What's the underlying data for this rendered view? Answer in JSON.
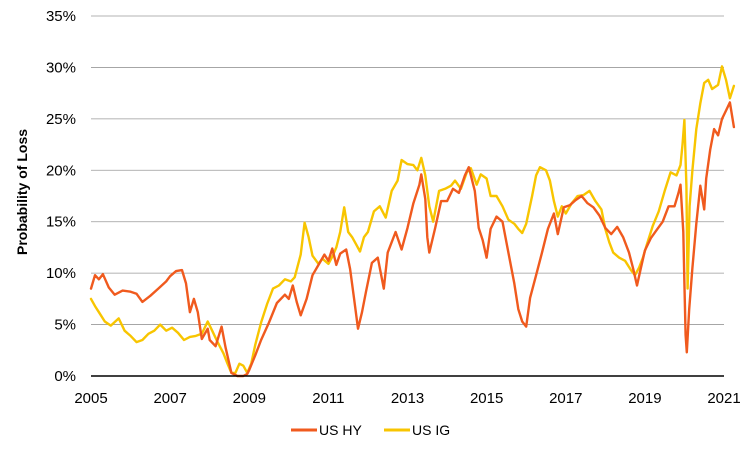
{
  "chart_data": {
    "type": "line",
    "title": "",
    "xlabel": "",
    "ylabel": "Probability of Loss",
    "xlim": [
      2005,
      2021
    ],
    "ylim": [
      0,
      35
    ],
    "x_ticks": [
      "2005",
      "2007",
      "2009",
      "2011",
      "2013",
      "2015",
      "2017",
      "2019",
      "2021"
    ],
    "y_ticks": [
      "0%",
      "5%",
      "10%",
      "15%",
      "20%",
      "25%",
      "30%",
      "35%"
    ],
    "grid": "horizontal",
    "legend_position": "bottom-center",
    "series": [
      {
        "name": "US HY",
        "color": "#F05A1E",
        "points": [
          [
            2005.0,
            8.5
          ],
          [
            2005.1,
            9.8
          ],
          [
            2005.2,
            9.4
          ],
          [
            2005.3,
            9.9
          ],
          [
            2005.45,
            8.6
          ],
          [
            2005.6,
            7.9
          ],
          [
            2005.8,
            8.3
          ],
          [
            2006.0,
            8.2
          ],
          [
            2006.15,
            8.0
          ],
          [
            2006.3,
            7.2
          ],
          [
            2006.5,
            7.8
          ],
          [
            2006.7,
            8.5
          ],
          [
            2006.9,
            9.2
          ],
          [
            2007.0,
            9.7
          ],
          [
            2007.15,
            10.2
          ],
          [
            2007.3,
            10.3
          ],
          [
            2007.4,
            9.0
          ],
          [
            2007.5,
            6.2
          ],
          [
            2007.6,
            7.5
          ],
          [
            2007.7,
            6.2
          ],
          [
            2007.8,
            3.6
          ],
          [
            2007.95,
            4.6
          ],
          [
            2008.0,
            3.5
          ],
          [
            2008.15,
            2.9
          ],
          [
            2008.3,
            4.8
          ],
          [
            2008.4,
            2.8
          ],
          [
            2008.55,
            0.3
          ],
          [
            2008.7,
            0.0
          ],
          [
            2008.85,
            0.0
          ],
          [
            2008.95,
            0.2
          ],
          [
            2009.0,
            0.6
          ],
          [
            2009.15,
            2.0
          ],
          [
            2009.3,
            3.5
          ],
          [
            2009.5,
            5.2
          ],
          [
            2009.7,
            7.1
          ],
          [
            2009.9,
            7.9
          ],
          [
            2010.0,
            7.5
          ],
          [
            2010.1,
            8.8
          ],
          [
            2010.2,
            7.2
          ],
          [
            2010.3,
            5.9
          ],
          [
            2010.45,
            7.5
          ],
          [
            2010.6,
            9.8
          ],
          [
            2010.75,
            10.8
          ],
          [
            2010.9,
            11.8
          ],
          [
            2011.0,
            11.2
          ],
          [
            2011.1,
            12.4
          ],
          [
            2011.2,
            10.8
          ],
          [
            2011.3,
            11.9
          ],
          [
            2011.45,
            12.3
          ],
          [
            2011.55,
            10.4
          ],
          [
            2011.65,
            7.5
          ],
          [
            2011.75,
            4.6
          ],
          [
            2011.85,
            6.2
          ],
          [
            2011.95,
            8.2
          ],
          [
            2012.1,
            11.0
          ],
          [
            2012.25,
            11.5
          ],
          [
            2012.4,
            8.5
          ],
          [
            2012.5,
            12.0
          ],
          [
            2012.7,
            14.0
          ],
          [
            2012.85,
            12.3
          ],
          [
            2013.0,
            14.4
          ],
          [
            2013.15,
            16.8
          ],
          [
            2013.3,
            18.6
          ],
          [
            2013.35,
            19.6
          ],
          [
            2013.45,
            17.2
          ],
          [
            2013.5,
            13.5
          ],
          [
            2013.55,
            12.0
          ],
          [
            2013.7,
            14.4
          ],
          [
            2013.85,
            17.0
          ],
          [
            2014.0,
            17.0
          ],
          [
            2014.15,
            18.2
          ],
          [
            2014.3,
            17.8
          ],
          [
            2014.45,
            19.5
          ],
          [
            2014.55,
            20.3
          ],
          [
            2014.7,
            18.0
          ],
          [
            2014.8,
            14.4
          ],
          [
            2014.9,
            13.2
          ],
          [
            2015.0,
            11.5
          ],
          [
            2015.1,
            14.3
          ],
          [
            2015.25,
            15.5
          ],
          [
            2015.4,
            15.0
          ],
          [
            2015.55,
            12.0
          ],
          [
            2015.7,
            9.0
          ],
          [
            2015.8,
            6.5
          ],
          [
            2015.9,
            5.3
          ],
          [
            2016.0,
            4.8
          ],
          [
            2016.1,
            7.6
          ],
          [
            2016.25,
            9.8
          ],
          [
            2016.4,
            12.0
          ],
          [
            2016.55,
            14.3
          ],
          [
            2016.7,
            15.8
          ],
          [
            2016.8,
            13.8
          ],
          [
            2016.95,
            16.4
          ],
          [
            2017.1,
            16.6
          ],
          [
            2017.25,
            17.1
          ],
          [
            2017.4,
            17.5
          ],
          [
            2017.55,
            16.8
          ],
          [
            2017.7,
            16.4
          ],
          [
            2017.85,
            15.6
          ],
          [
            2018.0,
            14.4
          ],
          [
            2018.15,
            13.8
          ],
          [
            2018.3,
            14.5
          ],
          [
            2018.45,
            13.5
          ],
          [
            2018.6,
            12.0
          ],
          [
            2018.7,
            10.5
          ],
          [
            2018.8,
            8.8
          ],
          [
            2018.9,
            10.5
          ],
          [
            2019.0,
            12.2
          ],
          [
            2019.15,
            13.4
          ],
          [
            2019.3,
            14.2
          ],
          [
            2019.45,
            15.0
          ],
          [
            2019.6,
            16.5
          ],
          [
            2019.75,
            16.5
          ],
          [
            2019.85,
            17.8
          ],
          [
            2019.9,
            18.6
          ],
          [
            2019.97,
            14.0
          ],
          [
            2020.0,
            9.0
          ],
          [
            2020.03,
            4.0
          ],
          [
            2020.06,
            2.3
          ],
          [
            2020.12,
            6.5
          ],
          [
            2020.2,
            10.5
          ],
          [
            2020.3,
            14.8
          ],
          [
            2020.4,
            18.5
          ],
          [
            2020.5,
            16.2
          ],
          [
            2020.55,
            19.2
          ],
          [
            2020.65,
            22.0
          ],
          [
            2020.75,
            24.0
          ],
          [
            2020.85,
            23.4
          ],
          [
            2020.95,
            25.0
          ],
          [
            2021.05,
            25.8
          ],
          [
            2021.15,
            26.6
          ],
          [
            2021.25,
            24.2
          ]
        ]
      },
      {
        "name": "US IG",
        "color": "#F8C500",
        "points": [
          [
            2005.0,
            7.5
          ],
          [
            2005.1,
            6.8
          ],
          [
            2005.2,
            6.2
          ],
          [
            2005.35,
            5.3
          ],
          [
            2005.5,
            4.9
          ],
          [
            2005.7,
            5.6
          ],
          [
            2005.85,
            4.4
          ],
          [
            2006.0,
            3.9
          ],
          [
            2006.15,
            3.3
          ],
          [
            2006.3,
            3.5
          ],
          [
            2006.45,
            4.1
          ],
          [
            2006.6,
            4.4
          ],
          [
            2006.75,
            5.0
          ],
          [
            2006.9,
            4.4
          ],
          [
            2007.05,
            4.7
          ],
          [
            2007.2,
            4.2
          ],
          [
            2007.35,
            3.5
          ],
          [
            2007.5,
            3.8
          ],
          [
            2007.65,
            3.9
          ],
          [
            2007.8,
            4.1
          ],
          [
            2007.95,
            5.3
          ],
          [
            2008.05,
            4.5
          ],
          [
            2008.2,
            3.3
          ],
          [
            2008.35,
            2.2
          ],
          [
            2008.45,
            1.2
          ],
          [
            2008.55,
            0.3
          ],
          [
            2008.65,
            0.3
          ],
          [
            2008.75,
            1.2
          ],
          [
            2008.85,
            1.0
          ],
          [
            2008.95,
            0.3
          ],
          [
            2009.05,
            1.2
          ],
          [
            2009.15,
            3.0
          ],
          [
            2009.3,
            5.2
          ],
          [
            2009.45,
            7.0
          ],
          [
            2009.6,
            8.5
          ],
          [
            2009.75,
            8.8
          ],
          [
            2009.9,
            9.4
          ],
          [
            2010.05,
            9.2
          ],
          [
            2010.15,
            9.6
          ],
          [
            2010.3,
            11.8
          ],
          [
            2010.4,
            14.9
          ],
          [
            2010.5,
            13.5
          ],
          [
            2010.6,
            11.7
          ],
          [
            2010.75,
            10.9
          ],
          [
            2010.85,
            11.4
          ],
          [
            2011.0,
            10.9
          ],
          [
            2011.1,
            11.6
          ],
          [
            2011.2,
            12.5
          ],
          [
            2011.3,
            14.0
          ],
          [
            2011.4,
            16.4
          ],
          [
            2011.5,
            14.0
          ],
          [
            2011.6,
            13.5
          ],
          [
            2011.7,
            12.8
          ],
          [
            2011.8,
            12.1
          ],
          [
            2011.9,
            13.5
          ],
          [
            2012.0,
            14.0
          ],
          [
            2012.15,
            16.0
          ],
          [
            2012.3,
            16.5
          ],
          [
            2012.45,
            15.4
          ],
          [
            2012.6,
            18.0
          ],
          [
            2012.75,
            19.0
          ],
          [
            2012.85,
            21.0
          ],
          [
            2013.0,
            20.6
          ],
          [
            2013.15,
            20.5
          ],
          [
            2013.25,
            20.0
          ],
          [
            2013.35,
            21.2
          ],
          [
            2013.45,
            19.5
          ],
          [
            2013.55,
            16.5
          ],
          [
            2013.65,
            15.0
          ],
          [
            2013.8,
            18.0
          ],
          [
            2013.95,
            18.2
          ],
          [
            2014.1,
            18.5
          ],
          [
            2014.2,
            19.0
          ],
          [
            2014.35,
            18.2
          ],
          [
            2014.5,
            19.8
          ],
          [
            2014.6,
            20.2
          ],
          [
            2014.75,
            18.6
          ],
          [
            2014.85,
            19.6
          ],
          [
            2015.0,
            19.2
          ],
          [
            2015.1,
            17.5
          ],
          [
            2015.25,
            17.5
          ],
          [
            2015.4,
            16.5
          ],
          [
            2015.55,
            15.2
          ],
          [
            2015.7,
            14.8
          ],
          [
            2015.8,
            14.3
          ],
          [
            2015.9,
            13.9
          ],
          [
            2016.0,
            14.8
          ],
          [
            2016.15,
            17.5
          ],
          [
            2016.25,
            19.5
          ],
          [
            2016.35,
            20.3
          ],
          [
            2016.5,
            20.0
          ],
          [
            2016.6,
            19.0
          ],
          [
            2016.7,
            17.0
          ],
          [
            2016.8,
            15.5
          ],
          [
            2016.9,
            16.5
          ],
          [
            2017.0,
            15.8
          ],
          [
            2017.15,
            16.8
          ],
          [
            2017.3,
            17.5
          ],
          [
            2017.45,
            17.6
          ],
          [
            2017.6,
            18.0
          ],
          [
            2017.75,
            17.0
          ],
          [
            2017.9,
            16.2
          ],
          [
            2018.0,
            14.3
          ],
          [
            2018.1,
            13.0
          ],
          [
            2018.2,
            12.0
          ],
          [
            2018.35,
            11.5
          ],
          [
            2018.5,
            11.2
          ],
          [
            2018.65,
            10.3
          ],
          [
            2018.75,
            9.8
          ],
          [
            2018.85,
            10.5
          ],
          [
            2018.95,
            11.5
          ],
          [
            2019.05,
            12.8
          ],
          [
            2019.2,
            14.6
          ],
          [
            2019.35,
            16.0
          ],
          [
            2019.5,
            18.0
          ],
          [
            2019.65,
            19.8
          ],
          [
            2019.8,
            19.5
          ],
          [
            2019.9,
            20.5
          ],
          [
            2019.95,
            22.5
          ],
          [
            2020.0,
            24.9
          ],
          [
            2020.05,
            18.5
          ],
          [
            2020.08,
            8.5
          ],
          [
            2020.13,
            16.5
          ],
          [
            2020.2,
            20.0
          ],
          [
            2020.3,
            24.0
          ],
          [
            2020.4,
            26.5
          ],
          [
            2020.5,
            28.5
          ],
          [
            2020.6,
            28.8
          ],
          [
            2020.7,
            27.9
          ],
          [
            2020.85,
            28.3
          ],
          [
            2020.95,
            30.1
          ],
          [
            2021.05,
            28.8
          ],
          [
            2021.15,
            27.0
          ],
          [
            2021.25,
            28.2
          ]
        ]
      }
    ]
  }
}
